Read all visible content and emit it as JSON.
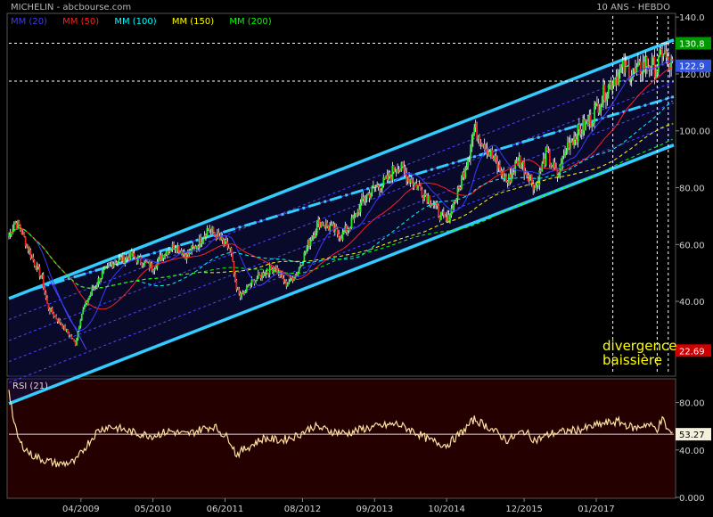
{
  "header": {
    "title": "MICHELIN - abcbourse.com",
    "period": "10 ANS - HEBDO"
  },
  "legend": [
    {
      "label": "MM (20)",
      "color": "#3a3aff"
    },
    {
      "label": "MM (50)",
      "color": "#ff2020"
    },
    {
      "label": "MM (100)",
      "color": "#00ffff"
    },
    {
      "label": "MM (150)",
      "color": "#ffff00"
    },
    {
      "label": "MM (200)",
      "color": "#00ff00"
    }
  ],
  "annotation": {
    "line1": "divergence",
    "line2": "baissière",
    "color": "#ffff00"
  },
  "rsi_label": "RSI (21)",
  "chart_data": [
    {
      "type": "candlestick",
      "title": "MICHELIN - abcbourse.com",
      "subtitle": "10 ANS - HEBDO",
      "x_tick_labels": [
        "04/2009",
        "05/2010",
        "06/2011",
        "08/2012",
        "09/2013",
        "10/2014",
        "12/2015",
        "01/2017"
      ],
      "x_ticks_dates": [
        "2009-04",
        "2010-05",
        "2011-06",
        "2012-08",
        "2013-09",
        "2014-10",
        "2015-12",
        "2017-01"
      ],
      "x_range": [
        "2008-03",
        "2018-03"
      ],
      "y_ticks": [
        40,
        60,
        80,
        100,
        120,
        140
      ],
      "y_tick_labels": [
        "40.00",
        "60.00",
        "80.00",
        "100.00",
        "120.00",
        "140.0"
      ],
      "y_range": [
        14,
        141
      ],
      "grid": false,
      "legend_position": "top-left",
      "price_path": [
        [
          "2008-03",
          63
        ],
        [
          "2008-04",
          68
        ],
        [
          "2008-05",
          66
        ],
        [
          "2008-07",
          56
        ],
        [
          "2008-09",
          48
        ],
        [
          "2008-10",
          38
        ],
        [
          "2008-12",
          33
        ],
        [
          "2009-02",
          28
        ],
        [
          "2009-03",
          25
        ],
        [
          "2009-04",
          35
        ],
        [
          "2009-06",
          44
        ],
        [
          "2009-08",
          50
        ],
        [
          "2009-10",
          54
        ],
        [
          "2010-01",
          56
        ],
        [
          "2010-03",
          54
        ],
        [
          "2010-05",
          52
        ],
        [
          "2010-07",
          57
        ],
        [
          "2010-09",
          60
        ],
        [
          "2010-11",
          56
        ],
        [
          "2011-01",
          60
        ],
        [
          "2011-03",
          66
        ],
        [
          "2011-04",
          64
        ],
        [
          "2011-07",
          58
        ],
        [
          "2011-08",
          44
        ],
        [
          "2011-09",
          42
        ],
        [
          "2011-11",
          47
        ],
        [
          "2012-01",
          50
        ],
        [
          "2012-03",
          52
        ],
        [
          "2012-05",
          46
        ],
        [
          "2012-07",
          50
        ],
        [
          "2012-09",
          60
        ],
        [
          "2012-11",
          68
        ],
        [
          "2013-01",
          66
        ],
        [
          "2013-03",
          63
        ],
        [
          "2013-05",
          68
        ],
        [
          "2013-07",
          76
        ],
        [
          "2013-09",
          80
        ],
        [
          "2013-11",
          82
        ],
        [
          "2014-01",
          88
        ],
        [
          "2014-03",
          84
        ],
        [
          "2014-05",
          80
        ],
        [
          "2014-07",
          76
        ],
        [
          "2014-09",
          70
        ],
        [
          "2014-10",
          68
        ],
        [
          "2014-12",
          78
        ],
        [
          "2015-02",
          92
        ],
        [
          "2015-03",
          101
        ],
        [
          "2015-05",
          95
        ],
        [
          "2015-07",
          88
        ],
        [
          "2015-09",
          82
        ],
        [
          "2015-11",
          90
        ],
        [
          "2016-01",
          84
        ],
        [
          "2016-02",
          80
        ],
        [
          "2016-04",
          92
        ],
        [
          "2016-06",
          84
        ],
        [
          "2016-08",
          96
        ],
        [
          "2016-10",
          100
        ],
        [
          "2016-12",
          104
        ],
        [
          "2017-02",
          112
        ],
        [
          "2017-04",
          118
        ],
        [
          "2017-06",
          122
        ],
        [
          "2017-08",
          120
        ],
        [
          "2017-10",
          124
        ],
        [
          "2017-12",
          122
        ],
        [
          "2018-01",
          129
        ],
        [
          "2018-02",
          123
        ],
        [
          "2018-03",
          122.9
        ]
      ],
      "moving_averages": [
        {
          "name": "MM (20)",
          "color": "#3a3aff",
          "period_weeks": 20
        },
        {
          "name": "MM (50)",
          "color": "#ff2020",
          "period_weeks": 50
        },
        {
          "name": "MM (100)",
          "color": "#00ffff",
          "period_weeks": 100
        },
        {
          "name": "MM (150)",
          "color": "#ffff00",
          "period_weeks": 150
        },
        {
          "name": "MM (200)",
          "color": "#00ff00",
          "period_weeks": 200
        }
      ],
      "reference_lines": [
        130.8,
        117.5
      ],
      "value_tags": [
        {
          "label": "130.8",
          "value": 130.8,
          "color": "#009900"
        },
        {
          "label": "122.9",
          "value": 122.9,
          "color": "#3355dd"
        },
        {
          "label": "22.69",
          "value": 22.69,
          "color": "#cc0000"
        }
      ],
      "channel": {
        "start": "2008-03",
        "end": "2018-03",
        "bottom_start": 4,
        "bottom_end": 95,
        "top_start": 41,
        "top_end": 132
      },
      "trend_lines": [
        {
          "from": [
            "2009-05",
            23
          ],
          "to": [
            "2008-10",
            49
          ]
        },
        {
          "from": [
            "2008-07",
            44
          ],
          "to": [
            "2018-03",
            112
          ]
        }
      ],
      "vertical_markers": [
        "2017-04",
        "2017-12",
        "2018-02"
      ]
    },
    {
      "type": "line",
      "name": "RSI (21)",
      "y_ticks": [
        0,
        40,
        80
      ],
      "y_tick_labels": [
        "0.000",
        "40.00",
        "80.00"
      ],
      "y_range": [
        0,
        100
      ],
      "last_value": 53.27,
      "reference_level": 53.27,
      "points": [
        [
          "2008-03",
          92
        ],
        [
          "2008-04",
          60
        ],
        [
          "2008-05",
          46
        ],
        [
          "2008-07",
          36
        ],
        [
          "2008-09",
          32
        ],
        [
          "2008-12",
          28
        ],
        [
          "2009-03",
          30
        ],
        [
          "2009-05",
          44
        ],
        [
          "2009-07",
          56
        ],
        [
          "2009-09",
          60
        ],
        [
          "2009-11",
          58
        ],
        [
          "2010-02",
          54
        ],
        [
          "2010-05",
          52
        ],
        [
          "2010-08",
          56
        ],
        [
          "2010-11",
          53
        ],
        [
          "2011-02",
          58
        ],
        [
          "2011-04",
          60
        ],
        [
          "2011-07",
          48
        ],
        [
          "2011-08",
          36
        ],
        [
          "2011-10",
          42
        ],
        [
          "2012-01",
          50
        ],
        [
          "2012-04",
          48
        ],
        [
          "2012-07",
          52
        ],
        [
          "2012-10",
          60
        ],
        [
          "2013-01",
          56
        ],
        [
          "2013-04",
          54
        ],
        [
          "2013-07",
          58
        ],
        [
          "2013-10",
          60
        ],
        [
          "2014-01",
          62
        ],
        [
          "2014-04",
          56
        ],
        [
          "2014-07",
          48
        ],
        [
          "2014-10",
          44
        ],
        [
          "2015-01",
          56
        ],
        [
          "2015-03",
          66
        ],
        [
          "2015-06",
          58
        ],
        [
          "2015-09",
          48
        ],
        [
          "2015-12",
          56
        ],
        [
          "2016-02",
          48
        ],
        [
          "2016-05",
          54
        ],
        [
          "2016-08",
          56
        ],
        [
          "2016-11",
          58
        ],
        [
          "2017-02",
          62
        ],
        [
          "2017-05",
          64
        ],
        [
          "2017-08",
          58
        ],
        [
          "2017-10",
          62
        ],
        [
          "2017-12",
          58
        ],
        [
          "2018-01",
          66
        ],
        [
          "2018-02",
          56
        ],
        [
          "2018-03",
          53.27
        ]
      ]
    }
  ]
}
